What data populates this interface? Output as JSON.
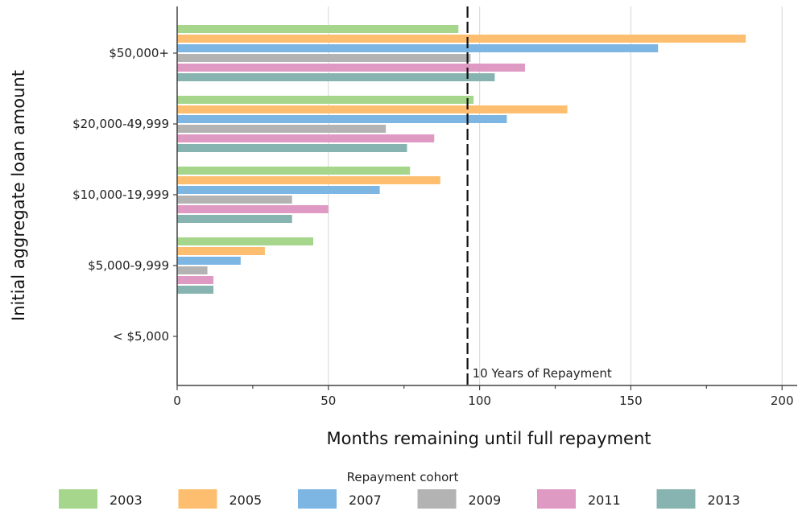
{
  "chart_data": {
    "type": "bar",
    "orientation": "horizontal",
    "xlabel": "Months remaining until full repayment",
    "ylabel": "Initial aggregate loan amount",
    "xlim": [
      0,
      205
    ],
    "xticks": [
      0,
      50,
      100,
      150,
      200
    ],
    "grid": "vertical",
    "categories": [
      "$50,000+",
      "$20,000-49,999",
      "$10,000-19,999",
      "$5,000-9,999",
      "< $5,000"
    ],
    "series": [
      {
        "name": "2003",
        "color": "#a6d68c",
        "values": [
          93,
          98,
          77,
          45,
          null
        ]
      },
      {
        "name": "2005",
        "color": "#fdbf6f",
        "values": [
          188,
          129,
          87,
          29,
          null
        ]
      },
      {
        "name": "2007",
        "color": "#7eb6e3",
        "values": [
          159,
          109,
          67,
          21,
          null
        ]
      },
      {
        "name": "2009",
        "color": "#b3b3b3",
        "values": [
          97,
          69,
          38,
          10,
          null
        ]
      },
      {
        "name": "2011",
        "color": "#df9ac3",
        "values": [
          115,
          85,
          50,
          12,
          null
        ]
      },
      {
        "name": "2013",
        "color": "#87b4b0",
        "values": [
          105,
          76,
          38,
          12,
          null
        ]
      }
    ],
    "reference_line": {
      "value": 96,
      "label": "10 Years of Repayment"
    },
    "legend": {
      "title": "Repayment cohort",
      "position": "bottom"
    }
  }
}
